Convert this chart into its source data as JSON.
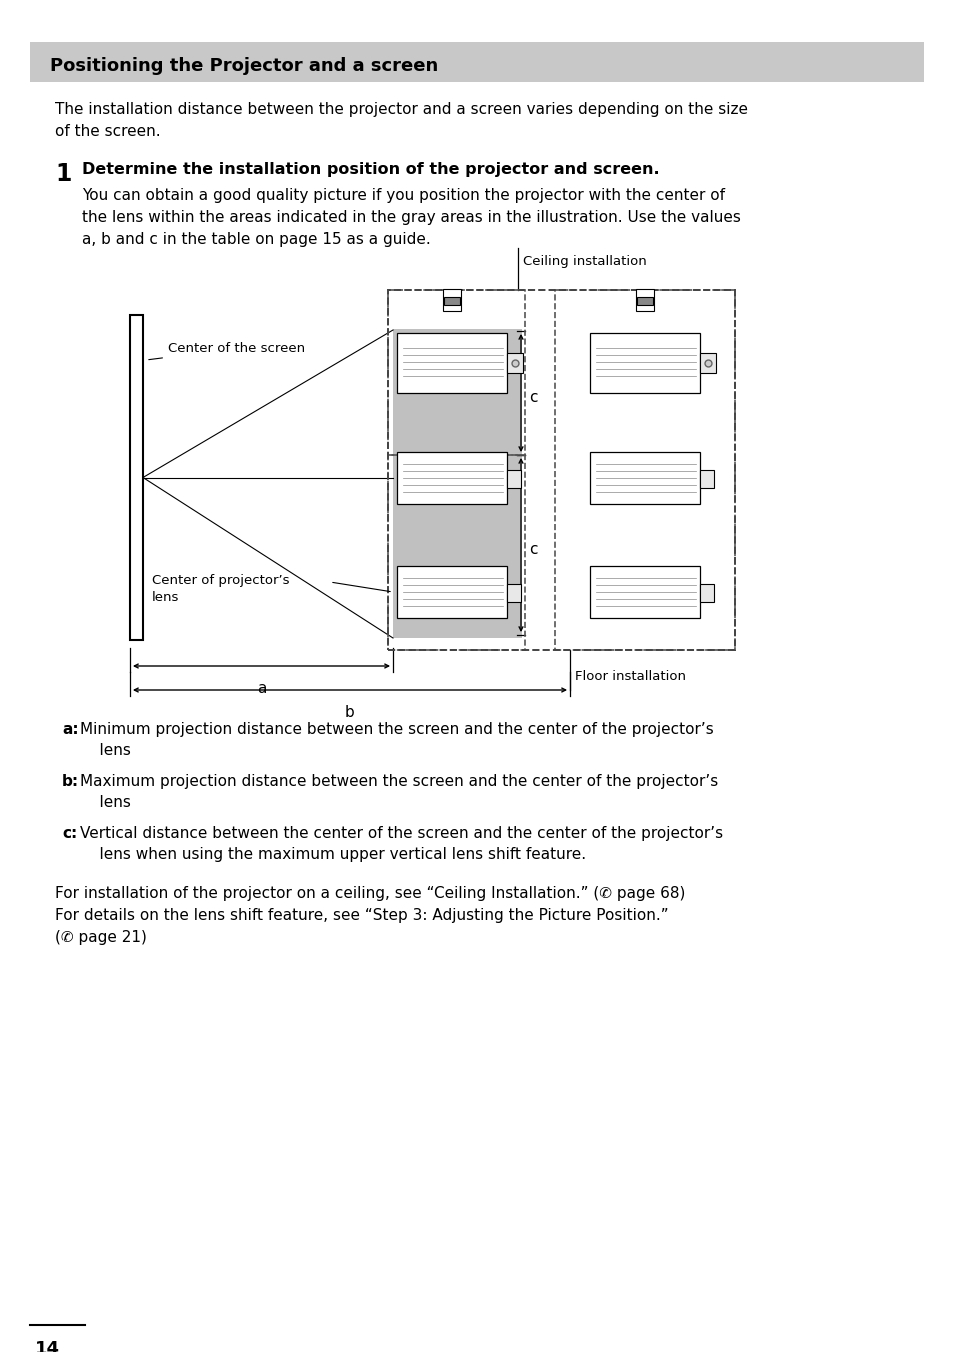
{
  "title": "Positioning the Projector and a screen",
  "title_bg": "#c8c8c8",
  "page_bg": "#ffffff",
  "page_number": "14",
  "intro_text": "The installation distance between the projector and a screen varies depending on the size\nof the screen.",
  "step1_label": "1",
  "step1_title": "Determine the installation position of the projector and screen.",
  "step1_body": "You can obtain a good quality picture if you position the projector with the center of\nthe lens within the areas indicated in the gray areas in the illustration. Use the values\na, b and c in the table on page 15 as a guide.",
  "label_ceiling": "Ceiling installation",
  "label_floor": "Floor installation",
  "label_screen_center": "Center of the screen",
  "label_proj_lens": "Center of projector’s\nlens",
  "label_a": "a",
  "label_b": "b",
  "label_c1": "c",
  "label_c2": "c",
  "bullet_a": "a:",
  "bullet_a_text": "Minimum projection distance between the screen and the center of the projector’s\n    lens",
  "bullet_b": "b:",
  "bullet_b_text": "Maximum projection distance between the screen and the center of the projector’s\n    lens",
  "bullet_c": "c:",
  "bullet_c_text": "Vertical distance between the center of the screen and the center of the projector’s\n    lens when using the maximum upper vertical lens shift feature.",
  "footer": "For installation of the projector on a ceiling, see “Ceiling Installation.” (✆ page 68)\nFor details on the lens shift feature, see “Step 3: Adjusting the Picture Position.”\n(✆ page 21)",
  "gray_fill": "#c0c0c0",
  "text_color": "#000000",
  "page_bg_color": "#ffffff",
  "title_bar_color": "#c8c8c8"
}
